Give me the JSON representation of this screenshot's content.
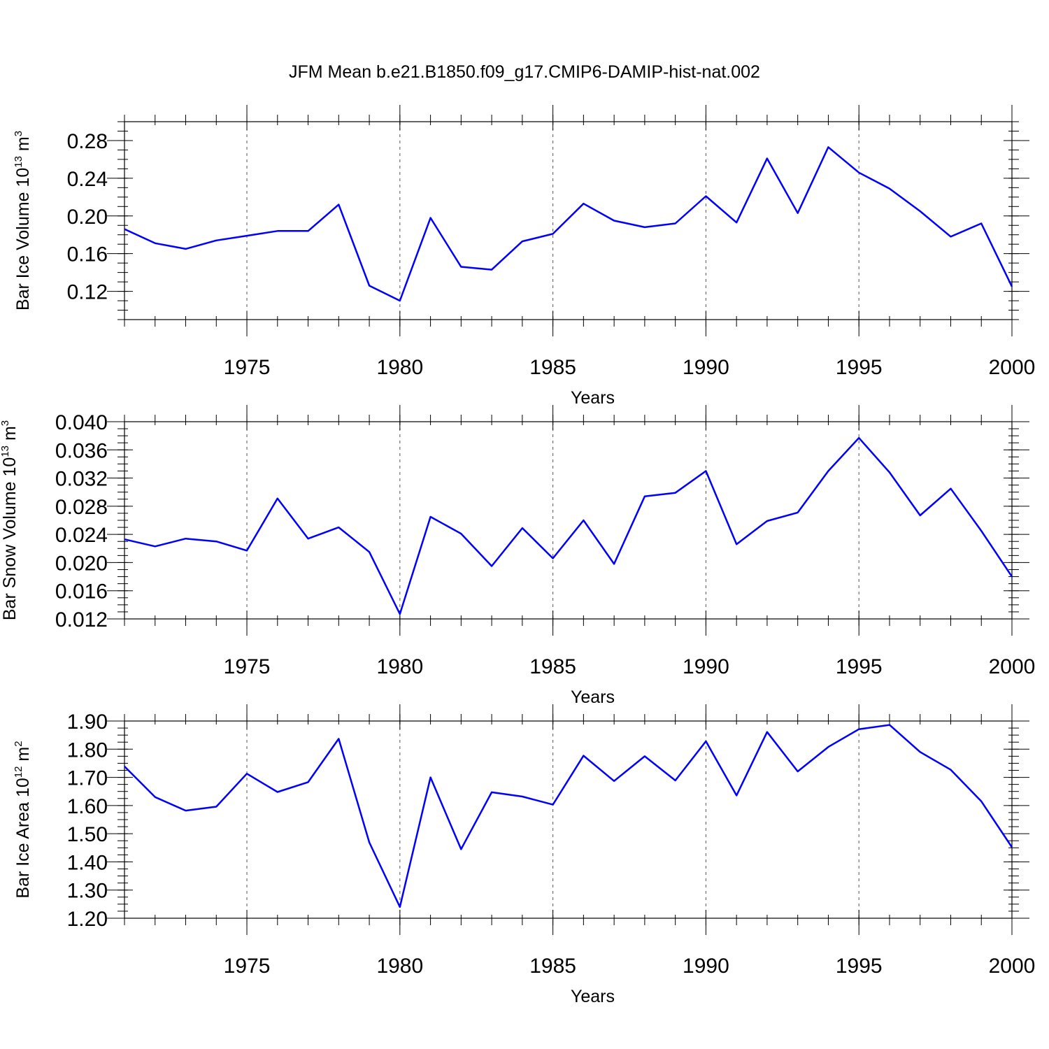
{
  "title": "JFM Mean b.e21.B1850.f09_g17.CMIP6-DAMIP-hist-nat.002",
  "colors": {
    "line": "#0000ff",
    "axes": "#000000",
    "grid": "#555555"
  },
  "chart_data": [
    {
      "type": "line",
      "xlabel": "Years",
      "ylabel": {
        "text": "Bar Ice Volume 10",
        "exp1": "13",
        "unit": " m",
        "exp2": "3"
      },
      "xlim": [
        1971,
        2000
      ],
      "ylim": [
        0.09,
        0.3
      ],
      "xticks": [
        1975,
        1980,
        1985,
        1990,
        1995,
        2000
      ],
      "yticks": [
        "0.12",
        "0.16",
        "0.20",
        "0.24",
        "0.28"
      ],
      "grid": "x-dashed",
      "series": [
        {
          "x": [
            1971,
            1972,
            1973,
            1974,
            1975,
            1976,
            1977,
            1978,
            1979,
            1980,
            1981,
            1982,
            1983,
            1984,
            1985,
            1986,
            1987,
            1988,
            1989,
            1990,
            1991,
            1992,
            1993,
            1994,
            1995,
            1996,
            1997,
            1998,
            1999,
            2000
          ],
          "y": [
            0.186,
            0.171,
            0.165,
            0.174,
            0.179,
            0.184,
            0.184,
            0.212,
            0.126,
            0.11,
            0.198,
            0.146,
            0.143,
            0.173,
            0.181,
            0.213,
            0.195,
            0.188,
            0.192,
            0.221,
            0.193,
            0.261,
            0.203,
            0.273,
            0.246,
            0.229,
            0.205,
            0.178,
            0.192,
            0.125
          ]
        }
      ]
    },
    {
      "type": "line",
      "xlabel": "Years",
      "ylabel": {
        "text": "Bar Snow Volume 10",
        "exp1": "13",
        "unit": " m",
        "exp2": "3"
      },
      "xlim": [
        1971,
        2000
      ],
      "ylim": [
        0.012,
        0.04
      ],
      "xticks": [
        1975,
        1980,
        1985,
        1990,
        1995,
        2000
      ],
      "yticks": [
        "0.012",
        "0.016",
        "0.020",
        "0.024",
        "0.028",
        "0.032",
        "0.036",
        "0.040"
      ],
      "grid": "x-dashed",
      "series": [
        {
          "x": [
            1971,
            1972,
            1973,
            1974,
            1975,
            1976,
            1977,
            1978,
            1979,
            1980,
            1981,
            1982,
            1983,
            1984,
            1985,
            1986,
            1987,
            1988,
            1989,
            1990,
            1991,
            1992,
            1993,
            1994,
            1995,
            1996,
            1997,
            1998,
            1999,
            2000
          ],
          "y": [
            0.0233,
            0.0223,
            0.0234,
            0.023,
            0.0217,
            0.0291,
            0.0234,
            0.025,
            0.0215,
            0.0127,
            0.0265,
            0.0241,
            0.0195,
            0.0249,
            0.0206,
            0.026,
            0.0198,
            0.0294,
            0.0299,
            0.033,
            0.0226,
            0.0259,
            0.0271,
            0.033,
            0.0377,
            0.0328,
            0.0267,
            0.0305,
            0.0245,
            0.018
          ]
        }
      ]
    },
    {
      "type": "line",
      "xlabel": "Years",
      "ylabel": {
        "text": "Bar Ice Area 10",
        "exp1": "12",
        "unit": " m",
        "exp2": "2"
      },
      "xlim": [
        1971,
        2000
      ],
      "ylim": [
        1.2,
        1.9
      ],
      "xticks": [
        1975,
        1980,
        1985,
        1990,
        1995,
        2000
      ],
      "yticks": [
        "1.20",
        "1.30",
        "1.40",
        "1.50",
        "1.60",
        "1.70",
        "1.80",
        "1.90"
      ],
      "grid": "x-dashed",
      "series": [
        {
          "x": [
            1971,
            1972,
            1973,
            1974,
            1975,
            1976,
            1977,
            1978,
            1979,
            1980,
            1981,
            1982,
            1983,
            1984,
            1985,
            1986,
            1987,
            1988,
            1989,
            1990,
            1991,
            1992,
            1993,
            1994,
            1995,
            1996,
            1997,
            1998,
            1999,
            2000
          ],
          "y": [
            1.739,
            1.63,
            1.582,
            1.596,
            1.713,
            1.648,
            1.683,
            1.837,
            1.469,
            1.24,
            1.7,
            1.445,
            1.647,
            1.632,
            1.603,
            1.777,
            1.687,
            1.775,
            1.689,
            1.828,
            1.636,
            1.861,
            1.721,
            1.808,
            1.871,
            1.886,
            1.79,
            1.727,
            1.615,
            1.452
          ]
        }
      ]
    }
  ]
}
